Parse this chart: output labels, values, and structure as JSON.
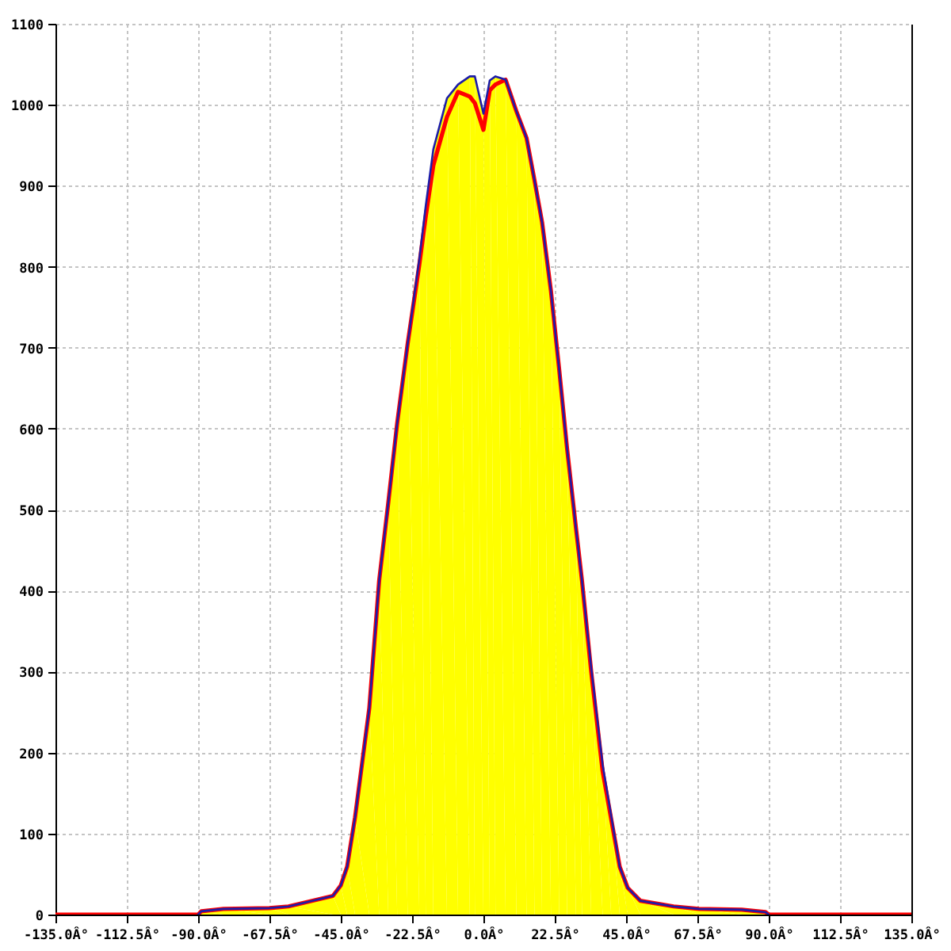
{
  "chart_data": {
    "type": "line",
    "x": [
      -90,
      -89,
      -82,
      -67.5,
      -61.5,
      -47.5,
      -45,
      -43,
      -40.5,
      -36,
      -32.9,
      -30,
      -27.2,
      -23.9,
      -20.2,
      -18.2,
      -15.8,
      -11.5,
      -8,
      -4.3,
      -2.7,
      0,
      2,
      3.8,
      7,
      10.4,
      13.6,
      16.1,
      18.5,
      21.3,
      23.9,
      26.4,
      29.2,
      31.1,
      34,
      37.6,
      40.3,
      43,
      45.5,
      49.5,
      60,
      68,
      81.5,
      89,
      90
    ],
    "xlim": [
      -135,
      135
    ],
    "ylim": [
      0,
      1100
    ],
    "xticks": [
      {
        "value": -135,
        "label": "-135.0Â°"
      },
      {
        "value": -112.5,
        "label": "-112.5Â°"
      },
      {
        "value": -90,
        "label": "-90.0Â°"
      },
      {
        "value": -67.5,
        "label": "-67.5Â°"
      },
      {
        "value": -45,
        "label": "-45.0Â°"
      },
      {
        "value": -22.5,
        "label": "-22.5Â°"
      },
      {
        "value": 0,
        "label": "0.0Â°"
      },
      {
        "value": 22.5,
        "label": "22.5Â°"
      },
      {
        "value": 45,
        "label": "45.0Â°"
      },
      {
        "value": 67.5,
        "label": "67.5Â°"
      },
      {
        "value": 90,
        "label": "90.0Â°"
      },
      {
        "value": 112.5,
        "label": "112.5Â°"
      },
      {
        "value": 135,
        "label": "135.0Â°"
      }
    ],
    "yticks": [
      0,
      100,
      200,
      300,
      400,
      500,
      600,
      700,
      800,
      900,
      1000,
      1100
    ],
    "grid": true,
    "series": [
      {
        "color": "#ff0000",
        "x": [
          -135,
          -90,
          -89,
          -82,
          -67.5,
          -61.5,
          -47.5,
          -45,
          -43,
          -40.5,
          -36,
          -32.9,
          -30,
          -27.2,
          -23.9,
          -20.2,
          -18.2,
          -15.8,
          -11.5,
          -8,
          -4.3,
          -2.7,
          0,
          2,
          3.8,
          7,
          10.4,
          13.6,
          16.1,
          18.5,
          21.3,
          23.9,
          26.4,
          29.2,
          31.1,
          34,
          37.6,
          40.3,
          43,
          45.5,
          49.5,
          60,
          68,
          81.5,
          89,
          90,
          135
        ],
        "values": [
          0,
          0,
          4,
          7,
          8,
          10,
          23,
          36,
          59,
          120,
          255,
          412,
          509,
          607,
          705,
          803,
          862,
          925,
          985,
          1016,
          1010,
          1002,
          969,
          1018,
          1025,
          1031,
          992,
          959,
          907,
          855,
          770,
          673,
          575,
          477,
          412,
          300,
          177,
          118,
          59,
          33,
          17,
          10,
          7,
          6,
          3,
          0,
          0
        ]
      },
      {
        "color": "#1c1ca8",
        "values": [
          0,
          4,
          7,
          8,
          10,
          23,
          36,
          59,
          120,
          255,
          412,
          509,
          607,
          705,
          810,
          875,
          945,
          1008,
          1025,
          1035,
          1035,
          989,
          1030,
          1035,
          1031,
          992,
          959,
          907,
          855,
          770,
          673,
          575,
          477,
          412,
          305,
          185,
          122,
          59,
          33,
          17,
          10,
          7,
          6,
          3,
          0
        ]
      },
      {
        "type": "area",
        "color": "#ffff00",
        "x": [
          -135,
          -90,
          -89,
          -82,
          -67.5,
          -61.5,
          -47.5,
          -45,
          -43,
          -40.5,
          -36,
          -32.9,
          -30,
          -27.2,
          -23.9,
          -20.2,
          -18.2,
          -15.8,
          -11.5,
          -8,
          -4.3,
          -2.7,
          0,
          2,
          3.8,
          7,
          10.4,
          13.6,
          16.1,
          18.5,
          21.3,
          23.9,
          26.4,
          29.2,
          31.1,
          34,
          37.6,
          40.3,
          43,
          45.5,
          49.5,
          60,
          68,
          81.5,
          89,
          90
        ],
        "values": [
          0,
          0,
          4,
          7,
          8,
          10,
          23,
          36,
          59,
          120,
          255,
          412,
          509,
          607,
          705,
          810,
          875,
          945,
          1008,
          1025,
          1035,
          1035,
          989,
          1030,
          1035,
          1031,
          992,
          959,
          907,
          855,
          770,
          673,
          575,
          477,
          412,
          305,
          185,
          122,
          59,
          33,
          17,
          10,
          7,
          6,
          3,
          0
        ]
      }
    ]
  }
}
